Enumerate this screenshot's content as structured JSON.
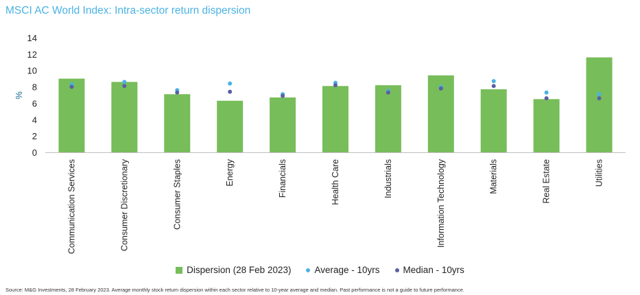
{
  "title": "MSCI AC World Index: Intra-sector return dispersion",
  "source": "Source: M&G Investments, 28 February 2023. Average monthly stock return dispersion within each sector relative to 10-year average and median. Past performance is not a guide to future performance.",
  "legend": {
    "dispersion": "Dispersion (28 Feb 2023)",
    "average": "Average - 10yrs",
    "median": "Median - 10yrs"
  },
  "colors": {
    "bar": "#77bd5a",
    "average": "#4ab2e3",
    "median": "#5b5fa6",
    "title": "#4ab2e3"
  },
  "chart_data": {
    "type": "bar",
    "ylabel": "%",
    "ylim": [
      0,
      14
    ],
    "yticks": [
      0,
      2,
      4,
      6,
      8,
      10,
      12,
      14
    ],
    "grid": false,
    "legend_position": "bottom",
    "categories": [
      "Communication Services",
      "Consumer Discretionary",
      "Consumer Staples",
      "Energy",
      "Financials",
      "Health Care",
      "Industrials",
      "Information Technology",
      "Materials",
      "Real Estate",
      "Utilities"
    ],
    "series": [
      {
        "name": "Dispersion (28 Feb 2023)",
        "kind": "bar",
        "values": [
          9.0,
          8.6,
          7.1,
          6.3,
          6.7,
          8.1,
          8.2,
          9.4,
          7.7,
          6.5,
          11.6
        ]
      },
      {
        "name": "Average - 10yrs",
        "kind": "dot",
        "values": [
          8.3,
          8.6,
          7.6,
          8.4,
          7.1,
          8.5,
          7.5,
          8.0,
          8.7,
          7.3,
          7.1
        ]
      },
      {
        "name": "Median - 10yrs",
        "kind": "dot",
        "values": [
          8.0,
          8.1,
          7.3,
          7.4,
          6.9,
          8.2,
          7.3,
          7.8,
          8.1,
          6.6,
          6.6
        ]
      }
    ]
  }
}
